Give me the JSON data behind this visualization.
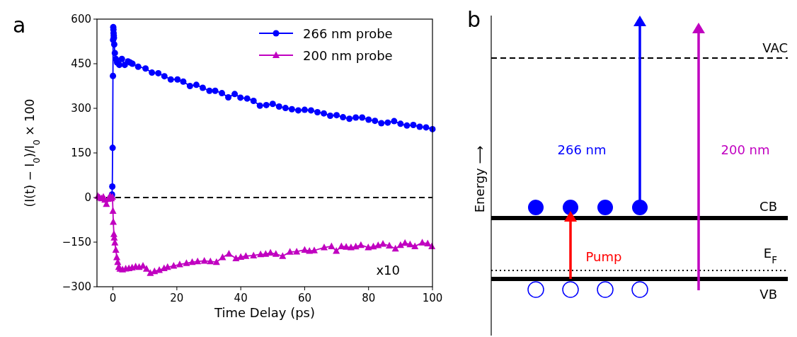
{
  "chart_data": [
    {
      "type": "line",
      "title": "a",
      "xlabel": "Time Delay (ps)",
      "ylabel": "(I(t) − I$_{0}$)/I$_{0}$ × 100",
      "xlim": [
        -5,
        100
      ],
      "ylim": [
        -300,
        600
      ],
      "xticks": [
        0,
        20,
        40,
        60,
        80,
        100
      ],
      "yticks": [
        -300,
        -150,
        0,
        150,
        300,
        450,
        600
      ],
      "legend": "top right",
      "grid": false,
      "line_style": "solid",
      "ref_lines": [
        {
          "axis": "y",
          "value": 0,
          "color": "#000000",
          "line_style": "dashed"
        }
      ],
      "annotations": [
        "x10"
      ],
      "series": [
        {
          "name": "266 nm probe",
          "color": "#0000ff",
          "marker": "circle",
          "x": [
            -0.4,
            -0.3,
            -0.2,
            -0.1,
            0,
            0.05,
            0.1,
            0.15,
            0.2,
            0.25,
            0.3,
            0.4,
            0.6,
            0.9,
            1.3,
            2,
            2.8,
            3.7,
            4.7,
            5.4,
            6.1,
            7.9,
            10.2,
            12.2,
            14.2,
            16.1,
            18.1,
            20.2,
            22,
            24.1,
            26.1,
            28.1,
            30.2,
            32,
            34.1,
            36.1,
            38.1,
            39.9,
            42,
            44,
            46,
            48,
            50,
            52,
            54,
            56,
            58,
            60,
            62,
            64,
            66,
            68,
            70,
            72,
            74,
            76,
            78,
            80,
            82,
            84,
            86,
            88,
            90,
            92,
            94,
            96,
            98,
            100
          ],
          "values": [
            5,
            10,
            37,
            167,
            409,
            530,
            573,
            565,
            553,
            544,
            537,
            515,
            486,
            466,
            454,
            446,
            466,
            446,
            458,
            454,
            450,
            440,
            434,
            420,
            418,
            408,
            397,
            397,
            390,
            375,
            379,
            369,
            359,
            359,
            351,
            337,
            348,
            336,
            333,
            325,
            309,
            311,
            315,
            306,
            301,
            297,
            293,
            295,
            293,
            287,
            283,
            275,
            277,
            270,
            265,
            269,
            269,
            262,
            258,
            250,
            252,
            257,
            248,
            242,
            244,
            238,
            236,
            230
          ]
        },
        {
          "name": "200 nm probe",
          "color": "#c000c0",
          "marker": "triangle",
          "x": [
            -4.7,
            -4.2,
            -3.6,
            -3,
            -2.5,
            -2.05,
            -1.5,
            -0.9,
            -0.5,
            -0.15,
            0,
            0.1,
            0.3,
            0.4,
            0.6,
            0.9,
            1.2,
            1.5,
            1.8,
            2.2,
            3,
            4,
            5,
            6,
            7.1,
            8.2,
            9.4,
            10.5,
            11.7,
            13,
            14.5,
            16,
            17.1,
            19,
            20.9,
            23,
            24.8,
            26.5,
            28.6,
            30.5,
            32.4,
            34.3,
            36.3,
            38.5,
            40,
            41.6,
            44,
            46.2,
            47.8,
            49.3,
            51,
            53.1,
            55.4,
            57.5,
            60,
            61.5,
            63,
            66.1,
            68.4,
            69.9,
            71.5,
            73,
            74.5,
            76,
            77.6,
            79.9,
            81.5,
            83,
            84.5,
            86.5,
            88.4,
            90,
            91.4,
            93,
            94.5,
            96.8,
            98.5,
            99.8
          ],
          "values": [
            5,
            0,
            -3,
            2,
            -8,
            -22,
            -5,
            5,
            -3,
            2,
            -45,
            -82,
            -123,
            -135,
            -152,
            -176,
            -201,
            -217,
            -234,
            -240,
            -242,
            -239,
            -238,
            -236,
            -232,
            -234,
            -230,
            -240,
            -254,
            -248,
            -244,
            -238,
            -234,
            -230,
            -225,
            -221,
            -217,
            -215,
            -213,
            -215,
            -217,
            -201,
            -189,
            -205,
            -200,
            -197,
            -195,
            -191,
            -190,
            -186,
            -190,
            -197,
            -183,
            -182,
            -176,
            -180,
            -178,
            -168,
            -164,
            -180,
            -164,
            -166,
            -168,
            -165,
            -160,
            -168,
            -165,
            -161,
            -156,
            -162,
            -172,
            -160,
            -153,
            -158,
            -164,
            -152,
            -155,
            -164
          ]
        }
      ]
    },
    {
      "type": "other",
      "title": "b",
      "ylabel": "Energy ⟶",
      "annotations": [
        "VAC",
        "CB",
        "E$_{F}$",
        "VB",
        "266 nm",
        "200 nm",
        "Pump"
      ]
    }
  ]
}
